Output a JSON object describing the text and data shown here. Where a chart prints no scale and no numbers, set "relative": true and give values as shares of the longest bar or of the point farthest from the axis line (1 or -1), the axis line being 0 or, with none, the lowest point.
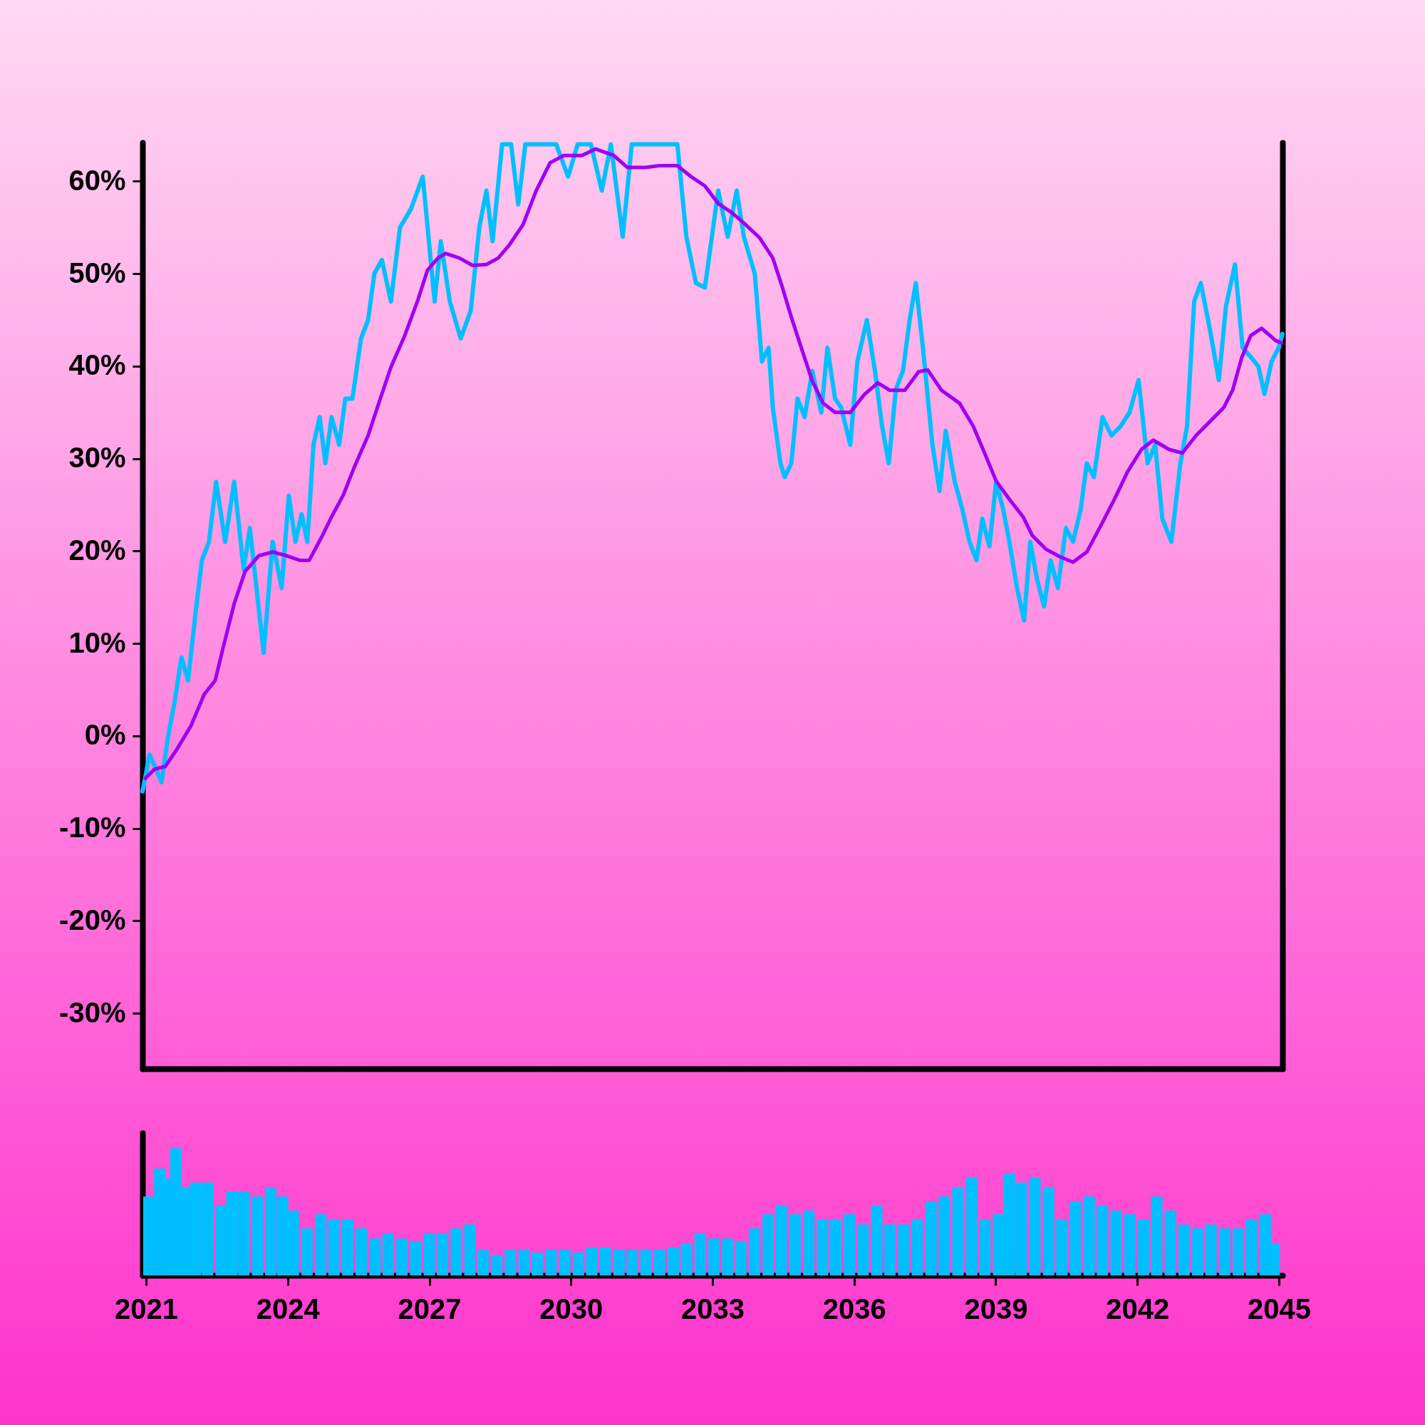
{
  "chart_data": [
    {
      "type": "line",
      "xlim": [
        2021,
        2045
      ],
      "ylim": [
        -36,
        64.2
      ],
      "yticks": [
        {
          "value": -30,
          "label": "-30%"
        },
        {
          "value": -20,
          "label": "-20%"
        },
        {
          "value": -10,
          "label": "-10%"
        },
        {
          "value": 0,
          "label": "0%"
        },
        {
          "value": 10,
          "label": "10%"
        },
        {
          "value": 20,
          "label": "20%"
        },
        {
          "value": 30,
          "label": "30%"
        },
        {
          "value": 40,
          "label": "40%"
        },
        {
          "value": 50,
          "label": "50%"
        },
        {
          "value": 60,
          "label": "60%"
        }
      ],
      "tick_labels": "y",
      "series": [
        {
          "color": "#00bfff",
          "x": [
            2021.0,
            2021.15,
            2021.4,
            2021.54,
            2021.67,
            2021.82,
            2021.96,
            2022.11,
            2022.25,
            2022.4,
            2022.55,
            2022.74,
            2022.93,
            2023.13,
            2023.26,
            2023.55,
            2023.74,
            2023.93,
            2024.08,
            2024.22,
            2024.35,
            2024.47,
            2024.6,
            2024.73,
            2024.85,
            2024.98,
            2025.14,
            2025.27,
            2025.42,
            2025.6,
            2025.75,
            2025.88,
            2026.04,
            2026.23,
            2026.42,
            2026.65,
            2026.9,
            2027.15,
            2027.28,
            2027.47,
            2027.7,
            2027.91,
            2028.09,
            2028.24,
            2028.37,
            2028.57,
            2028.76,
            2028.91,
            2029.06,
            2029.49,
            2029.71,
            2029.96,
            2030.16,
            2030.44,
            2030.67,
            2030.86,
            2031.11,
            2031.3,
            2031.59,
            2032.07,
            2032.26,
            2032.45,
            2032.65,
            2032.84,
            2033.12,
            2033.32,
            2033.51,
            2033.66,
            2033.89,
            2034.04,
            2034.18,
            2034.27,
            2034.43,
            2034.52,
            2034.66,
            2034.79,
            2034.94,
            2035.1,
            2035.29,
            2035.42,
            2035.58,
            2035.71,
            2035.9,
            2036.05,
            2036.25,
            2036.42,
            2036.57,
            2036.71,
            2036.86,
            2037.01,
            2037.15,
            2037.28,
            2037.43,
            2037.63,
            2037.78,
            2037.91,
            2038.1,
            2038.26,
            2038.41,
            2038.56,
            2038.68,
            2038.83,
            2038.97,
            2039.12,
            2039.25,
            2039.41,
            2039.56,
            2039.69,
            2039.83,
            2039.98,
            2040.12,
            2040.27,
            2040.44,
            2040.59,
            2040.75,
            2040.88,
            2041.03,
            2041.21,
            2041.4,
            2041.59,
            2041.78,
            2041.97,
            2042.16,
            2042.32,
            2042.47,
            2042.66,
            2042.85,
            2042.99,
            2043.14,
            2043.28,
            2043.47,
            2043.66,
            2043.81,
            2044.0,
            2044.16,
            2044.33,
            2044.49,
            2044.62,
            2044.77,
            2044.92,
            2045.0
          ],
          "values": [
            -6,
            -2,
            -5,
            0,
            3.5,
            8.5,
            6,
            13,
            19,
            21,
            27.5,
            21,
            27.5,
            18,
            22.5,
            9,
            21,
            16,
            26,
            21,
            24,
            21,
            31.5,
            34.5,
            29.5,
            34.5,
            31.5,
            36.5,
            36.5,
            43,
            45,
            50,
            51.5,
            47,
            55,
            57,
            60.5,
            47,
            53.5,
            47,
            43,
            46,
            55,
            59,
            53.5,
            64,
            64,
            57.5,
            64,
            64,
            64,
            60.5,
            64,
            64,
            59,
            64,
            54,
            64,
            64,
            64,
            64,
            54,
            49,
            48.5,
            59,
            54,
            59,
            54,
            50,
            40.5,
            42,
            35.5,
            29.5,
            28,
            29.5,
            36.5,
            34.5,
            39.5,
            35,
            42,
            36.5,
            35.5,
            31.5,
            40.5,
            45,
            39.5,
            33.5,
            29.5,
            37.5,
            39.5,
            45,
            49,
            42,
            31.5,
            26.5,
            33,
            27.5,
            24.5,
            21,
            19,
            23.5,
            20.5,
            27.5,
            24.5,
            21,
            16,
            12.5,
            21,
            17,
            14,
            19,
            16,
            22.5,
            21,
            24.5,
            29.5,
            28,
            34.5,
            32.5,
            33.5,
            35,
            38.5,
            29.5,
            31.5,
            23.5,
            21,
            29.5,
            33.5,
            47,
            49,
            44,
            38.5,
            46.5,
            51,
            42,
            41,
            40,
            37,
            40.5,
            42,
            43.5
          ]
        },
        {
          "color": "#a000f0",
          "x": [
            2021.06,
            2021.25,
            2021.48,
            2021.73,
            2022.02,
            2022.3,
            2022.53,
            2022.69,
            2022.93,
            2023.16,
            2023.45,
            2023.74,
            2024.03,
            2024.31,
            2024.51,
            2024.79,
            2024.98,
            2025.23,
            2025.46,
            2025.75,
            2026.0,
            2026.23,
            2026.52,
            2026.8,
            2027.0,
            2027.22,
            2027.38,
            2027.67,
            2027.95,
            2028.24,
            2028.49,
            2028.72,
            2029.01,
            2029.29,
            2029.58,
            2029.87,
            2030.25,
            2030.54,
            2030.92,
            2031.21,
            2031.59,
            2031.88,
            2032.26,
            2032.55,
            2032.84,
            2033.12,
            2033.41,
            2033.7,
            2033.99,
            2034.27,
            2034.46,
            2034.66,
            2034.85,
            2035.1,
            2035.33,
            2035.58,
            2035.9,
            2036.19,
            2036.48,
            2036.73,
            2037.05,
            2037.34,
            2037.53,
            2037.82,
            2038.2,
            2038.49,
            2038.77,
            2038.97,
            2039.25,
            2039.54,
            2039.73,
            2040.02,
            2040.31,
            2040.59,
            2040.88,
            2041.17,
            2041.46,
            2041.74,
            2042.03,
            2042.28,
            2042.61,
            2042.89,
            2043.18,
            2043.47,
            2043.76,
            2043.95,
            2044.14,
            2044.33,
            2044.56,
            2044.85,
            2044.98
          ],
          "values": [
            -4.6,
            -3.6,
            -3.3,
            -1.4,
            1.1,
            4.5,
            6,
            9.4,
            14.3,
            17.8,
            19.5,
            19.9,
            19.5,
            19,
            19,
            21.7,
            23.7,
            26.1,
            29.1,
            32.5,
            36.4,
            39.9,
            43.3,
            47.2,
            50.4,
            51.7,
            52.2,
            51.7,
            50.9,
            51,
            51.7,
            53.1,
            55.3,
            59,
            62,
            62.8,
            62.8,
            63.5,
            62.8,
            61.5,
            61.5,
            61.7,
            61.7,
            60.5,
            59.5,
            57.6,
            56.6,
            55.3,
            53.9,
            51.7,
            48.7,
            45.3,
            42.3,
            38.4,
            36,
            35,
            35,
            36.9,
            38.2,
            37.4,
            37.4,
            39.4,
            39.6,
            37.4,
            36,
            33.5,
            30.1,
            27.6,
            25.6,
            23.7,
            21.7,
            20.2,
            19.4,
            18.8,
            19.9,
            22.7,
            25.6,
            28.6,
            31,
            32,
            31,
            30.6,
            32.5,
            34,
            35.5,
            37.4,
            40.9,
            43.3,
            44.1,
            42.8,
            42.5
          ]
        }
      ]
    },
    {
      "type": "bar",
      "relative": true,
      "color": "#00bfff",
      "xlim": [
        2021,
        2045
      ],
      "xticks": [
        2021,
        2024,
        2027,
        2030,
        2033,
        2036,
        2039,
        2042,
        2045
      ],
      "tick_labels": "x",
      "x": [
        2021.06,
        2021.29,
        2021.48,
        2021.63,
        2021.82,
        2022.05,
        2022.3,
        2022.59,
        2022.82,
        2023.07,
        2023.36,
        2023.64,
        2023.89,
        2024.12,
        2024.41,
        2024.7,
        2024.98,
        2025.27,
        2025.56,
        2025.85,
        2026.13,
        2026.42,
        2026.71,
        2027.0,
        2027.28,
        2027.57,
        2027.86,
        2028.14,
        2028.43,
        2028.72,
        2029.01,
        2029.29,
        2029.58,
        2029.87,
        2030.16,
        2030.44,
        2030.73,
        2031.02,
        2031.3,
        2031.59,
        2031.88,
        2032.17,
        2032.45,
        2032.74,
        2033.03,
        2033.32,
        2033.6,
        2033.89,
        2034.18,
        2034.46,
        2034.75,
        2035.04,
        2035.33,
        2035.61,
        2035.9,
        2036.19,
        2036.48,
        2036.76,
        2037.05,
        2037.34,
        2037.63,
        2037.91,
        2038.2,
        2038.49,
        2038.77,
        2039.06,
        2039.29,
        2039.54,
        2039.83,
        2040.12,
        2040.4,
        2040.69,
        2040.98,
        2041.26,
        2041.55,
        2041.84,
        2042.13,
        2042.41,
        2042.7,
        2042.99,
        2043.28,
        2043.56,
        2043.85,
        2044.14,
        2044.42,
        2044.71,
        2044.9
      ],
      "values": [
        0.62,
        0.84,
        0.76,
        1,
        0.69,
        0.73,
        0.73,
        0.55,
        0.66,
        0.66,
        0.62,
        0.69,
        0.62,
        0.51,
        0.37,
        0.48,
        0.44,
        0.44,
        0.37,
        0.29,
        0.33,
        0.29,
        0.27,
        0.33,
        0.33,
        0.37,
        0.4,
        0.2,
        0.16,
        0.2,
        0.2,
        0.18,
        0.2,
        0.2,
        0.18,
        0.22,
        0.22,
        0.2,
        0.2,
        0.2,
        0.2,
        0.22,
        0.25,
        0.33,
        0.29,
        0.29,
        0.27,
        0.37,
        0.48,
        0.55,
        0.48,
        0.51,
        0.44,
        0.44,
        0.48,
        0.4,
        0.55,
        0.4,
        0.4,
        0.44,
        0.58,
        0.62,
        0.69,
        0.77,
        0.44,
        0.48,
        0.8,
        0.73,
        0.77,
        0.69,
        0.44,
        0.58,
        0.62,
        0.55,
        0.51,
        0.48,
        0.44,
        0.62,
        0.51,
        0.4,
        0.37,
        0.4,
        0.37,
        0.37,
        0.44,
        0.48,
        0.25
      ]
    }
  ]
}
